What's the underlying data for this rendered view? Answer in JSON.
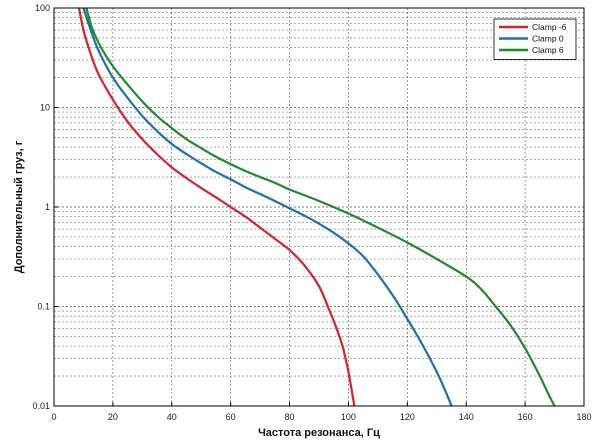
{
  "chart_data": {
    "type": "line",
    "xlabel": "Частота резонанса, Гц",
    "ylabel": "Дополнительный груз, г",
    "xlim": [
      0,
      180
    ],
    "ylim": [
      0.01,
      100
    ],
    "y_scale": "log",
    "x_ticks": [
      0,
      20,
      40,
      60,
      80,
      100,
      120,
      140,
      160,
      180
    ],
    "y_ticks": [
      0.01,
      0.1,
      1,
      10,
      100
    ],
    "y_tick_labels": [
      "0.01",
      "0.1",
      "1",
      "10",
      "100"
    ],
    "grid": true,
    "legend_position": "top-right",
    "series": [
      {
        "name": "Clamp -6",
        "color": "#d8232a",
        "x": [
          8.5,
          10,
          12,
          15,
          20,
          25,
          30,
          35,
          40,
          45,
          50,
          55,
          60,
          65,
          70,
          75,
          80,
          85,
          90,
          93,
          96,
          98,
          99,
          100,
          101,
          102
        ],
        "y": [
          100,
          60,
          38,
          22,
          12,
          7.2,
          4.8,
          3.4,
          2.5,
          1.95,
          1.55,
          1.25,
          1.0,
          0.8,
          0.62,
          0.48,
          0.37,
          0.26,
          0.16,
          0.1,
          0.06,
          0.04,
          0.03,
          0.022,
          0.015,
          0.01
        ]
      },
      {
        "name": "Clamp 0",
        "color": "#1a6fb5",
        "x": [
          10,
          12,
          15,
          20,
          25,
          30,
          35,
          40,
          45,
          50,
          55,
          60,
          65,
          70,
          75,
          80,
          85,
          90,
          95,
          100,
          105,
          110,
          115,
          120,
          125,
          130,
          133,
          135
        ],
        "y": [
          100,
          66,
          38,
          20,
          12.5,
          8.2,
          5.8,
          4.3,
          3.4,
          2.75,
          2.25,
          1.9,
          1.58,
          1.35,
          1.15,
          0.97,
          0.82,
          0.68,
          0.55,
          0.43,
          0.32,
          0.21,
          0.13,
          0.075,
          0.042,
          0.022,
          0.014,
          0.01
        ]
      },
      {
        "name": "Clamp 6",
        "color": "#1f8a2c",
        "x": [
          11,
          13,
          16,
          20,
          25,
          30,
          35,
          40,
          45,
          50,
          55,
          60,
          65,
          70,
          75,
          80,
          90,
          100,
          110,
          120,
          130,
          140,
          145,
          150,
          155,
          160,
          165,
          168,
          170
        ],
        "y": [
          100,
          62,
          40,
          26,
          17,
          11.5,
          8.2,
          6.2,
          4.8,
          3.9,
          3.2,
          2.7,
          2.3,
          2.0,
          1.75,
          1.5,
          1.15,
          0.86,
          0.62,
          0.44,
          0.3,
          0.2,
          0.15,
          0.1,
          0.065,
          0.038,
          0.02,
          0.013,
          0.01
        ]
      }
    ]
  }
}
